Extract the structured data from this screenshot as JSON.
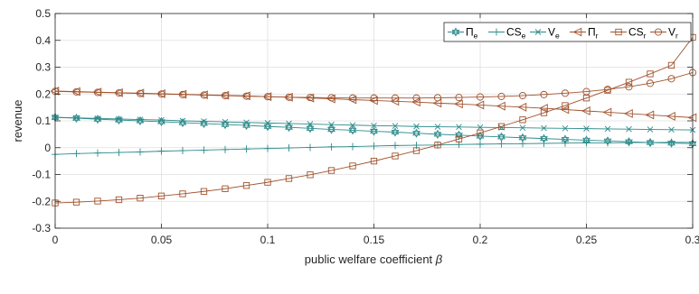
{
  "chart_data": {
    "type": "line",
    "xlabel": "public welfare coefficient",
    "xlabel_symbol": "β",
    "ylabel": "revenue",
    "xlim": [
      0,
      0.3
    ],
    "ylim": [
      -0.3,
      0.5
    ],
    "xticks": [
      0,
      0.05,
      0.1,
      0.15,
      0.2,
      0.25,
      0.3
    ],
    "xtick_labels": [
      "0",
      "0.05",
      "0.1",
      "0.15",
      "0.2",
      "0.25",
      "0.3"
    ],
    "yticks": [
      -0.3,
      -0.2,
      -0.1,
      0,
      0.1,
      0.2,
      0.3,
      0.4,
      0.5
    ],
    "ytick_labels": [
      "-0.3",
      "-0.2",
      "-0.1",
      "0",
      "0.1",
      "0.2",
      "0.3",
      "0.4",
      "0.5"
    ],
    "grid": true,
    "legend_position": "top-right",
    "x": [
      0,
      0.01,
      0.02,
      0.03,
      0.04,
      0.05,
      0.06,
      0.07,
      0.08,
      0.09,
      0.1,
      0.11,
      0.12,
      0.13,
      0.14,
      0.15,
      0.16,
      0.17,
      0.18,
      0.19,
      0.2,
      0.21,
      0.22,
      0.23,
      0.24,
      0.25,
      0.26,
      0.27,
      0.28,
      0.29,
      0.3
    ],
    "series": [
      {
        "name": "Π",
        "sub": "e",
        "color": "#2e8b8b",
        "marker": "hexagram",
        "values": [
          0.113,
          0.11,
          0.106,
          0.103,
          0.1,
          0.097,
          0.093,
          0.09,
          0.086,
          0.083,
          0.079,
          0.076,
          0.072,
          0.068,
          0.065,
          0.061,
          0.058,
          0.054,
          0.05,
          0.047,
          0.043,
          0.04,
          0.037,
          0.034,
          0.031,
          0.028,
          0.025,
          0.022,
          0.019,
          0.017,
          0.015
        ]
      },
      {
        "name": "CS",
        "sub": "e",
        "color": "#2e8b8b",
        "marker": "plus",
        "values": [
          -0.025,
          -0.022,
          -0.02,
          -0.018,
          -0.016,
          -0.013,
          -0.011,
          -0.009,
          -0.007,
          -0.005,
          -0.003,
          -0.001,
          0.001,
          0.003,
          0.004,
          0.006,
          0.008,
          0.009,
          0.01,
          0.012,
          0.013,
          0.014,
          0.015,
          0.016,
          0.017,
          0.018,
          0.018,
          0.019,
          0.019,
          0.02,
          0.02
        ]
      },
      {
        "name": "V",
        "sub": "e",
        "color": "#2e8b8b",
        "marker": "cross",
        "values": [
          0.113,
          0.111,
          0.109,
          0.107,
          0.105,
          0.103,
          0.1,
          0.098,
          0.096,
          0.094,
          0.092,
          0.09,
          0.088,
          0.086,
          0.084,
          0.082,
          0.081,
          0.079,
          0.078,
          0.077,
          0.076,
          0.075,
          0.074,
          0.073,
          0.072,
          0.071,
          0.07,
          0.069,
          0.068,
          0.067,
          0.066
        ]
      },
      {
        "name": "Π",
        "sub": "r",
        "color": "#a0522d",
        "marker": "triangle-left",
        "values": [
          0.211,
          0.209,
          0.207,
          0.205,
          0.203,
          0.201,
          0.199,
          0.197,
          0.195,
          0.193,
          0.19,
          0.188,
          0.185,
          0.182,
          0.179,
          0.176,
          0.173,
          0.17,
          0.166,
          0.163,
          0.159,
          0.155,
          0.151,
          0.147,
          0.142,
          0.137,
          0.132,
          0.127,
          0.122,
          0.117,
          0.112
        ]
      },
      {
        "name": "CS",
        "sub": "r",
        "color": "#a0522d",
        "marker": "square",
        "values": [
          -0.206,
          -0.203,
          -0.199,
          -0.194,
          -0.188,
          -0.18,
          -0.172,
          -0.163,
          -0.153,
          -0.141,
          -0.129,
          -0.115,
          -0.101,
          -0.085,
          -0.068,
          -0.05,
          -0.031,
          -0.011,
          0.01,
          0.032,
          0.055,
          0.079,
          0.104,
          0.13,
          0.157,
          0.185,
          0.214,
          0.244,
          0.275,
          0.307,
          0.411
        ]
      },
      {
        "name": "V",
        "sub": "r",
        "color": "#a0522d",
        "marker": "circle",
        "values": [
          0.21,
          0.208,
          0.206,
          0.204,
          0.202,
          0.2,
          0.198,
          0.196,
          0.194,
          0.192,
          0.19,
          0.188,
          0.187,
          0.186,
          0.185,
          0.185,
          0.185,
          0.185,
          0.186,
          0.187,
          0.189,
          0.191,
          0.194,
          0.198,
          0.203,
          0.209,
          0.217,
          0.227,
          0.24,
          0.257,
          0.28
        ]
      }
    ]
  }
}
